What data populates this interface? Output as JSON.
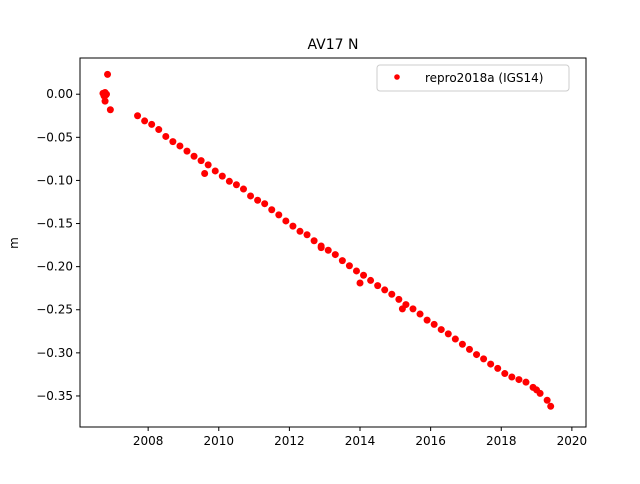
{
  "chart_data": {
    "type": "scatter",
    "title": "AV17 N",
    "xlabel": "",
    "ylabel": "m",
    "xlim": [
      2006.07,
      2020.4
    ],
    "ylim": [
      -0.386,
      0.042
    ],
    "xticks": [
      2008,
      2010,
      2012,
      2014,
      2016,
      2018,
      2020
    ],
    "xtick_labels": [
      "2008",
      "2010",
      "2012",
      "2014",
      "2016",
      "2018",
      "2020"
    ],
    "yticks": [
      0.0,
      -0.05,
      -0.1,
      -0.15,
      -0.2,
      -0.25,
      -0.3,
      -0.35
    ],
    "ytick_labels": [
      "0.00",
      "−0.05",
      "−0.10",
      "−0.15",
      "−0.20",
      "−0.25",
      "−0.30",
      "−0.35"
    ],
    "grid": false,
    "legend_position": "top-right",
    "series": [
      {
        "name": "repro2018a (IGS14)",
        "color": "#ff0000",
        "x": [
          2006.72,
          2006.75,
          2006.78,
          2006.8,
          2006.82,
          2006.78,
          2006.85,
          2006.93,
          2007.7,
          2007.9,
          2008.1,
          2008.3,
          2008.5,
          2008.7,
          2008.9,
          2009.1,
          2009.3,
          2009.5,
          2009.7,
          2009.9,
          2010.1,
          2010.3,
          2010.5,
          2010.7,
          2010.9,
          2011.1,
          2011.3,
          2011.5,
          2011.7,
          2011.9,
          2012.1,
          2012.3,
          2012.5,
          2012.7,
          2012.9,
          2013.1,
          2013.3,
          2013.5,
          2013.7,
          2013.9,
          2014.1,
          2014.3,
          2014.5,
          2014.7,
          2014.9,
          2015.1,
          2015.3,
          2015.5,
          2015.7,
          2015.9,
          2016.1,
          2016.3,
          2016.5,
          2016.7,
          2016.9,
          2017.1,
          2017.3,
          2017.5,
          2017.7,
          2017.9,
          2018.1,
          2018.3,
          2018.5,
          2018.7,
          2018.9,
          2019.1,
          2019.3,
          2019.4,
          2014.0,
          2015.2,
          2009.6,
          2012.9,
          2019.0
        ],
        "y": [
          0.001,
          -0.002,
          0.002,
          -0.001,
          0.0,
          -0.008,
          0.023,
          -0.018,
          -0.025,
          -0.031,
          -0.035,
          -0.041,
          -0.049,
          -0.055,
          -0.06,
          -0.066,
          -0.072,
          -0.077,
          -0.082,
          -0.089,
          -0.095,
          -0.101,
          -0.105,
          -0.11,
          -0.118,
          -0.123,
          -0.127,
          -0.134,
          -0.14,
          -0.147,
          -0.153,
          -0.159,
          -0.163,
          -0.17,
          -0.176,
          -0.181,
          -0.186,
          -0.193,
          -0.199,
          -0.205,
          -0.21,
          -0.216,
          -0.222,
          -0.227,
          -0.232,
          -0.238,
          -0.244,
          -0.249,
          -0.255,
          -0.262,
          -0.267,
          -0.273,
          -0.278,
          -0.284,
          -0.29,
          -0.296,
          -0.302,
          -0.307,
          -0.313,
          -0.318,
          -0.324,
          -0.328,
          -0.331,
          -0.334,
          -0.34,
          -0.347,
          -0.355,
          -0.362,
          -0.219,
          -0.249,
          -0.092,
          -0.178,
          -0.343
        ]
      }
    ]
  }
}
